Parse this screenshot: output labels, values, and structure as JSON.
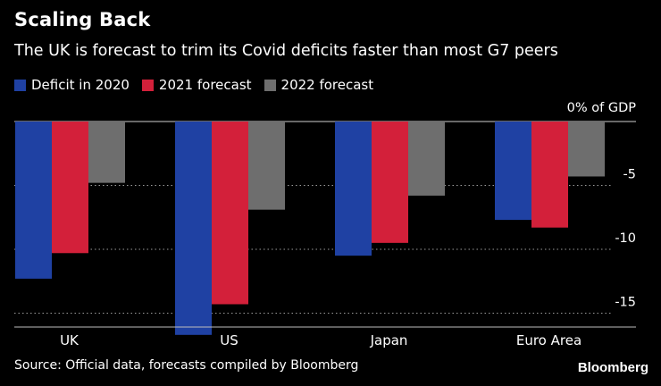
{
  "header": {
    "title": "Scaling Back",
    "subtitle": "The UK is forecast to trim its Covid deficits faster than most G7 peers"
  },
  "footer": {
    "source": "Source: Official data, forecasts compiled by Bloomberg",
    "brand": "Bloomberg"
  },
  "colors": {
    "background": "#000000",
    "series_2020": "#1f41a3",
    "series_2021": "#d3203a",
    "series_2022": "#6e6e6e",
    "grid": "#9a9a9a"
  },
  "chart_data": {
    "type": "bar",
    "title": "Scaling Back",
    "subtitle": "The UK is forecast to trim its Covid deficits faster than most G7 peers",
    "categories": [
      "UK",
      "US",
      "Japan",
      "Euro Area"
    ],
    "series": [
      {
        "name": "Deficit in 2020",
        "values": [
          -12.3,
          -16.7,
          -10.5,
          -7.7
        ]
      },
      {
        "name": "2021 forecast",
        "values": [
          -10.3,
          -14.3,
          -9.5,
          -8.3
        ]
      },
      {
        "name": "2022 forecast",
        "values": [
          -4.8,
          -6.9,
          -5.8,
          -4.3
        ]
      }
    ],
    "ylim": [
      -17,
      0
    ],
    "yticks": [
      0,
      -5,
      -10,
      -15
    ],
    "ytick_labels": [
      "0% of GDP",
      "-5",
      "-10",
      "-15"
    ],
    "xlabel": "",
    "ylabel": "",
    "grid": true,
    "legend_position": "top-left"
  }
}
